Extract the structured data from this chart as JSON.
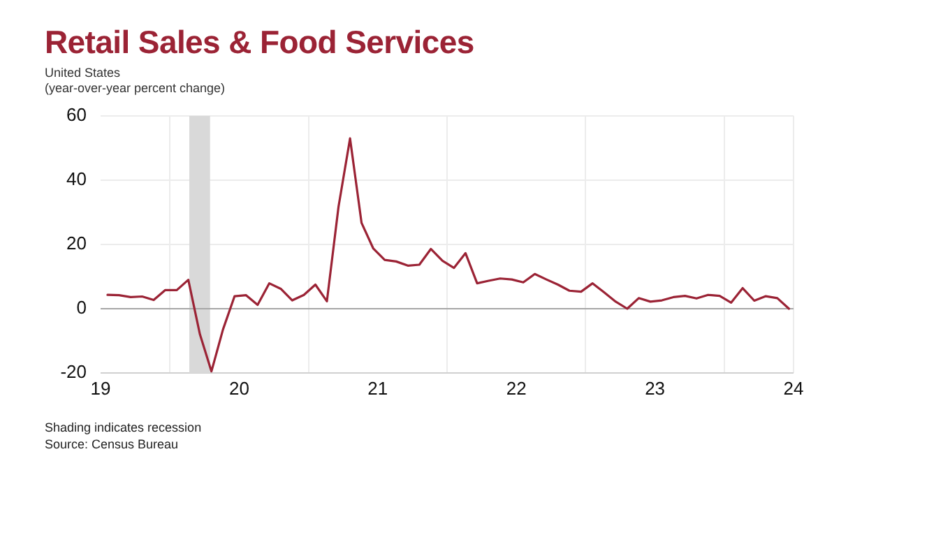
{
  "chart_data": {
    "type": "line",
    "title": "Retail Sales & Food Services",
    "subtitle": "United States",
    "ylabel": "(year-over-year percent change)",
    "x": [
      2019.05,
      2019.133,
      2019.217,
      2019.3,
      2019.383,
      2019.467,
      2019.55,
      2019.633,
      2019.717,
      2019.8,
      2019.883,
      2019.967,
      2020.05,
      2020.133,
      2020.217,
      2020.3,
      2020.383,
      2020.467,
      2020.55,
      2020.633,
      2020.717,
      2020.8,
      2020.883,
      2020.967,
      2021.05,
      2021.133,
      2021.217,
      2021.3,
      2021.383,
      2021.467,
      2021.55,
      2021.633,
      2021.717,
      2021.8,
      2021.883,
      2021.967,
      2022.05,
      2022.133,
      2022.217,
      2022.3,
      2022.383,
      2022.467,
      2022.55,
      2022.633,
      2022.717,
      2022.8,
      2022.883,
      2022.967,
      2023.05,
      2023.133,
      2023.217,
      2023.3,
      2023.383,
      2023.467,
      2023.55,
      2023.633,
      2023.717,
      2023.8,
      2023.883,
      2023.967
    ],
    "series": [
      {
        "color": "#9b2335",
        "values": [
          4.3,
          4.2,
          3.6,
          3.8,
          2.7,
          5.8,
          5.8,
          9.0,
          -8.0,
          -19.5,
          -6.5,
          3.9,
          4.2,
          1.2,
          7.9,
          6.2,
          2.6,
          4.3,
          7.5,
          2.3,
          31.8,
          53.0,
          26.7,
          18.8,
          15.2,
          14.7,
          13.4,
          13.7,
          18.6,
          14.9,
          12.7,
          17.3,
          7.9,
          8.7,
          9.4,
          9.1,
          8.2,
          10.8,
          9.1,
          7.5,
          5.6,
          5.3,
          7.9,
          5.1,
          2.2,
          0,
          3.3,
          2.2,
          2.6,
          3.6,
          4.0,
          3.2,
          4.3,
          4.0,
          1.9,
          6.4,
          2.5,
          3.9,
          3.3,
          0
        ]
      }
    ],
    "xlim": [
      2019,
      2024
    ],
    "xticks": [
      {
        "value": 2019,
        "label": "19"
      },
      {
        "value": 2019.5,
        "label": null
      },
      {
        "value": 2020,
        "label": "20"
      },
      {
        "value": 2020.5,
        "label": null
      },
      {
        "value": 2021,
        "label": "21"
      },
      {
        "value": 2021.5,
        "label": null
      },
      {
        "value": 2022,
        "label": "22"
      },
      {
        "value": 2022.5,
        "label": null
      },
      {
        "value": 2023,
        "label": "23"
      },
      {
        "value": 2023.5,
        "label": null
      },
      {
        "value": 2024,
        "label": "24"
      }
    ],
    "ylim": [
      -20,
      60
    ],
    "yticks": [
      -20,
      0,
      20,
      40,
      60
    ],
    "grid": true,
    "marker": "none",
    "line_style": "solid",
    "ref_lines": [
      {
        "axis": "y",
        "value": 0,
        "color": "#a6a6a6"
      }
    ],
    "bands": [
      {
        "axis": "x",
        "from": 2019.64,
        "to": 2019.79,
        "color": "#d9d9d9"
      }
    ],
    "annotations": [
      "Shading indicates recession",
      "Source: Census Bureau"
    ]
  }
}
